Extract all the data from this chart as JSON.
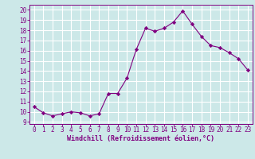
{
  "x": [
    0,
    1,
    2,
    3,
    4,
    5,
    6,
    7,
    8,
    9,
    10,
    11,
    12,
    13,
    14,
    15,
    16,
    17,
    18,
    19,
    20,
    21,
    22,
    23
  ],
  "y": [
    10.5,
    9.9,
    9.6,
    9.8,
    10.0,
    9.9,
    9.6,
    9.8,
    11.8,
    11.8,
    13.3,
    16.1,
    18.2,
    17.9,
    18.2,
    18.8,
    19.9,
    18.6,
    17.4,
    16.5,
    16.3,
    15.8,
    15.2,
    14.1
  ],
  "line_color": "#800080",
  "marker": "D",
  "marker_size": 2.2,
  "bg_color": "#cce8e8",
  "grid_color": "#ffffff",
  "tick_color": "#800080",
  "label_color": "#800080",
  "xlabel": "Windchill (Refroidissement éolien,°C)",
  "ylim": [
    8.8,
    20.5
  ],
  "xlim": [
    -0.5,
    23.5
  ],
  "yticks": [
    9,
    10,
    11,
    12,
    13,
    14,
    15,
    16,
    17,
    18,
    19,
    20
  ],
  "xticks": [
    0,
    1,
    2,
    3,
    4,
    5,
    6,
    7,
    8,
    9,
    10,
    11,
    12,
    13,
    14,
    15,
    16,
    17,
    18,
    19,
    20,
    21,
    22,
    23
  ],
  "tick_fontsize": 5.5,
  "xlabel_fontsize": 6.0
}
